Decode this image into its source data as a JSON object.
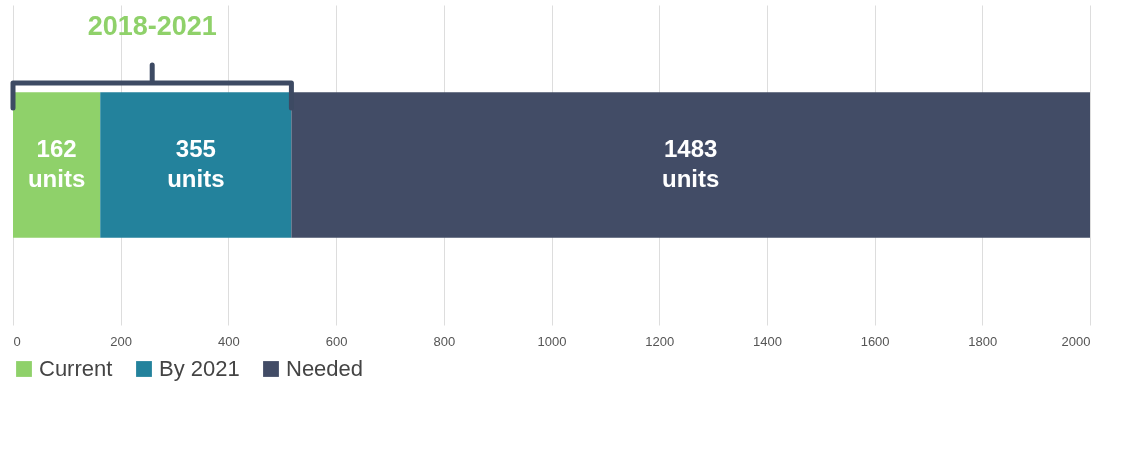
{
  "chart_data": {
    "type": "bar",
    "orientation": "horizontal",
    "stacked": true,
    "categories": [
      null
    ],
    "series": [
      {
        "name": "Current",
        "color": "#8fd16a",
        "values": [
          162
        ]
      },
      {
        "name": "By 2021",
        "color": "#23829c",
        "values": [
          355
        ]
      },
      {
        "name": "Needed",
        "color": "#424c66",
        "values": [
          1483
        ]
      }
    ],
    "value_labels": [
      [
        "162 units"
      ],
      [
        "355 units"
      ],
      [
        "1483 units"
      ]
    ],
    "annotations": [
      "2018-2021"
    ],
    "xlim": [
      0,
      2000
    ],
    "xticks": [
      0,
      200,
      400,
      600,
      800,
      1000,
      1200,
      1400,
      1600,
      1800,
      2000
    ],
    "grid": "x",
    "legend": "bottom"
  }
}
